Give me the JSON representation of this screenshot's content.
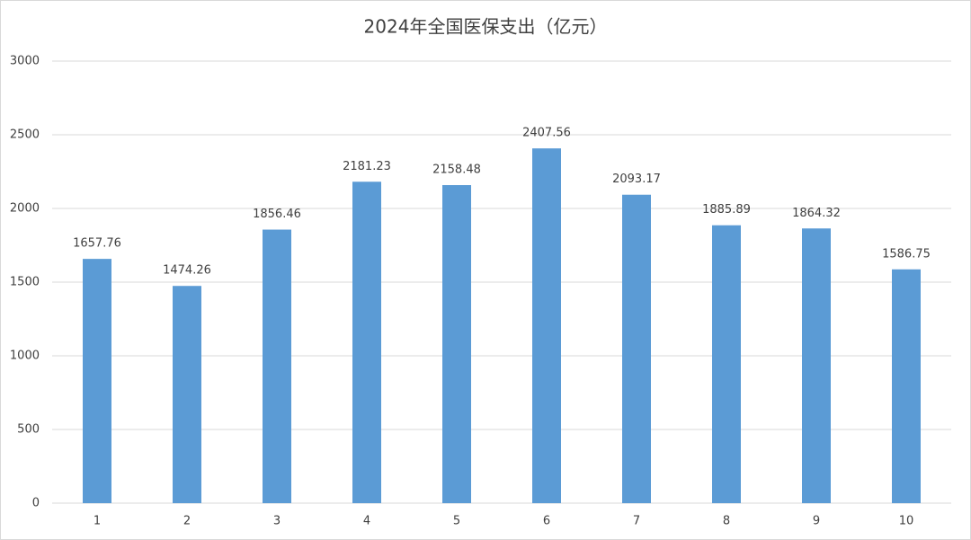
{
  "chart_data": {
    "type": "bar",
    "title": "2024年全国医保支出（亿元）",
    "categories": [
      "1",
      "2",
      "3",
      "4",
      "5",
      "6",
      "7",
      "8",
      "9",
      "10"
    ],
    "values": [
      1657.76,
      1474.26,
      1856.46,
      2181.23,
      2158.48,
      2407.56,
      2093.17,
      1885.89,
      1864.32,
      1586.75
    ],
    "color": "#5b9bd5",
    "ylim": [
      0,
      3000
    ],
    "yticks": [
      0,
      500,
      1000,
      1500,
      2000,
      2500,
      3000
    ],
    "grid": true
  }
}
